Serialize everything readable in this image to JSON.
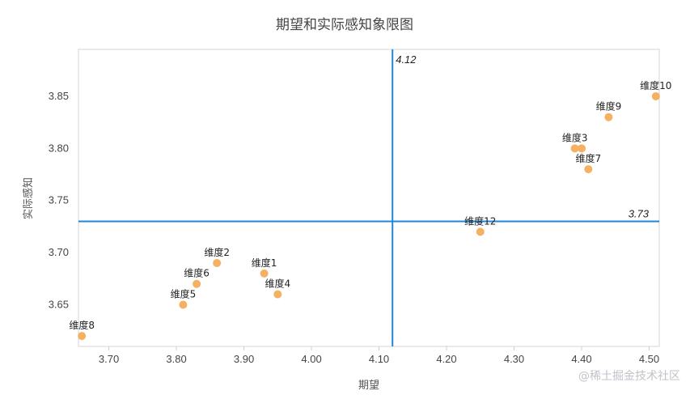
{
  "chart_data": {
    "type": "scatter",
    "title": "期望和实际感知象限图",
    "xlabel": "期望",
    "ylabel": "实际感知",
    "xlim": [
      3.655,
      4.515
    ],
    "ylim": [
      3.61,
      3.895
    ],
    "xticks": [
      "3.70",
      "3.80",
      "3.90",
      "4.00",
      "4.10",
      "4.20",
      "4.30",
      "4.40",
      "4.50"
    ],
    "yticks": [
      "3.65",
      "3.70",
      "3.75",
      "3.80",
      "3.85"
    ],
    "reference_lines": {
      "x": 4.12,
      "x_label": "4.12",
      "y": 3.73,
      "y_label": "3.73"
    },
    "point_color": "#f5b062",
    "line_color": "#1f86d9",
    "points": [
      {
        "name": "维度1",
        "x": 3.93,
        "y": 3.68
      },
      {
        "name": "维度2",
        "x": 3.86,
        "y": 3.69
      },
      {
        "name": "维度3",
        "x": 4.39,
        "y": 3.8
      },
      {
        "name": "维度4",
        "x": 3.95,
        "y": 3.66
      },
      {
        "name": "维度5",
        "x": 3.81,
        "y": 3.65
      },
      {
        "name": "维度6",
        "x": 3.83,
        "y": 3.67
      },
      {
        "name": "维度7",
        "x": 4.41,
        "y": 3.78
      },
      {
        "name": "维度8",
        "x": 3.66,
        "y": 3.62
      },
      {
        "name": "维度9",
        "x": 4.44,
        "y": 3.83
      },
      {
        "name": "维度10",
        "x": 4.51,
        "y": 3.85
      },
      {
        "name": "",
        "x": 4.4,
        "y": 3.8
      },
      {
        "name": "维度12",
        "x": 4.25,
        "y": 3.72
      }
    ]
  },
  "watermark": "@稀土掘金技术社区"
}
